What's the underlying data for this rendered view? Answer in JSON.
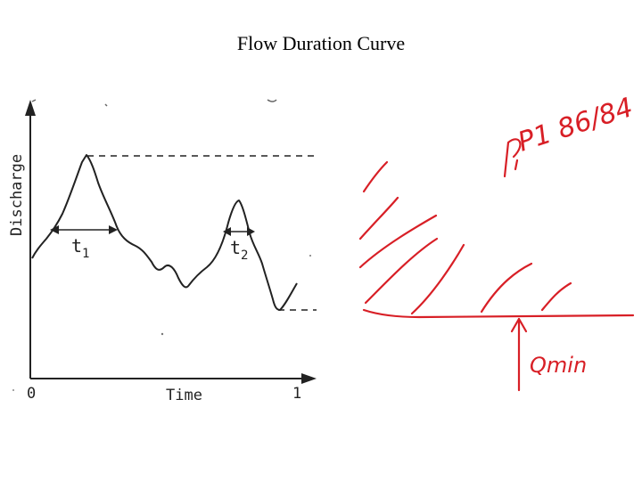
{
  "slide": {
    "title": "Flow Duration Curve"
  },
  "scan": {
    "y_axis_label": "Discharge",
    "x_axis_label": "Time",
    "x_start": "0",
    "x_end": "1",
    "t1_main": "t",
    "t1_sub": "1",
    "t2_main": "t",
    "t2_sub": "2"
  },
  "annotation": {
    "handwritten_note": "P1 86/84",
    "qmin_label": "Qmin"
  },
  "colors": {
    "ink": "#d81f26",
    "scan": "#222222",
    "title": "#000000"
  }
}
